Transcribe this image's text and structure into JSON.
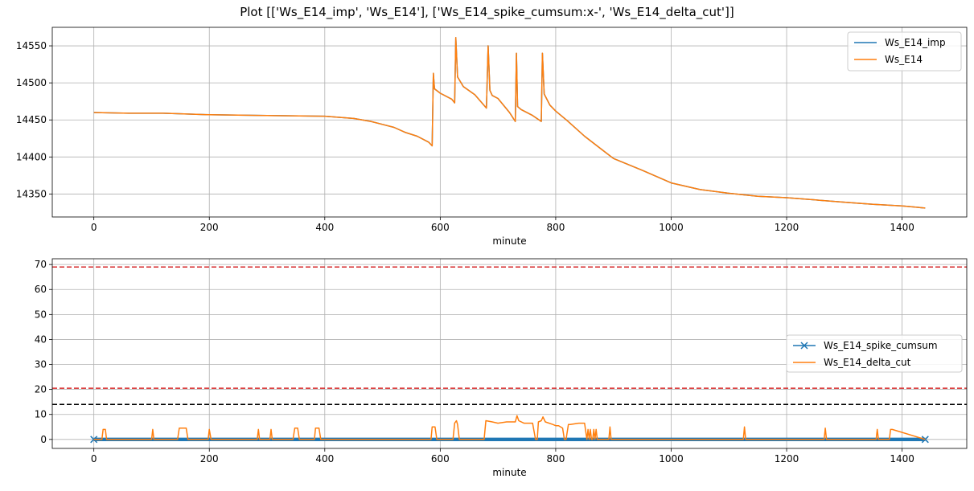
{
  "figure": {
    "suptitle": "Plot [['Ws_E14_imp', 'Ws_E14'], ['Ws_E14_spike_cumsum:x-', 'Ws_E14_delta_cut']]",
    "colors": {
      "blue": "#1f77b4",
      "orange": "#ff7f0e",
      "red": "#d62728",
      "black": "#000000",
      "grid": "#b0b0b0"
    }
  },
  "chart_data": [
    {
      "type": "line",
      "title": "",
      "xlabel": "minute",
      "ylabel": "",
      "xlim": [
        -72,
        1512
      ],
      "ylim": [
        14319,
        14575
      ],
      "xticks": [
        0,
        200,
        400,
        600,
        800,
        1000,
        1200,
        1400
      ],
      "yticks": [
        14350,
        14400,
        14450,
        14500,
        14550
      ],
      "grid": true,
      "legend": {
        "placement": "upper right",
        "entries": [
          "Ws_E14_imp",
          "Ws_E14"
        ]
      },
      "series": [
        {
          "name": "Ws_E14_imp",
          "color": "#1f77b4",
          "x": [
            0,
            60,
            120,
            200,
            300,
            400,
            450,
            480,
            500,
            520,
            540,
            560,
            580,
            586,
            588,
            590,
            600,
            620,
            625,
            627,
            630,
            640,
            660,
            680,
            683,
            686,
            690,
            700,
            720,
            730,
            732,
            734,
            740,
            760,
            775,
            777,
            780,
            790,
            800,
            820,
            850,
            880,
            900,
            950,
            1000,
            1050,
            1100,
            1150,
            1200,
            1250,
            1300,
            1350,
            1400,
            1440
          ],
          "values": [
            14460,
            14459,
            14459,
            14457,
            14456,
            14455,
            14452,
            14448,
            14444,
            14440,
            14433,
            14428,
            14420,
            14415,
            14513,
            14492,
            14486,
            14478,
            14473,
            14561,
            14508,
            14495,
            14484,
            14466,
            14550,
            14490,
            14483,
            14479,
            14460,
            14448,
            14540,
            14468,
            14464,
            14456,
            14448,
            14540,
            14485,
            14470,
            14462,
            14449,
            14428,
            14410,
            14398,
            14382,
            14365,
            14356,
            14351,
            14347,
            14345,
            14342,
            14339,
            14336,
            14334,
            14331
          ]
        },
        {
          "name": "Ws_E14",
          "color": "#ff7f0e",
          "x": [
            0,
            60,
            120,
            200,
            300,
            400,
            450,
            480,
            500,
            520,
            540,
            560,
            580,
            586,
            588,
            590,
            600,
            620,
            625,
            627,
            630,
            640,
            660,
            680,
            683,
            686,
            690,
            700,
            720,
            730,
            732,
            734,
            740,
            760,
            775,
            777,
            780,
            790,
            800,
            820,
            850,
            880,
            900,
            950,
            1000,
            1050,
            1100,
            1150,
            1200,
            1250,
            1300,
            1350,
            1400,
            1440
          ],
          "values": [
            14460,
            14459,
            14459,
            14457,
            14456,
            14455,
            14452,
            14448,
            14444,
            14440,
            14433,
            14428,
            14420,
            14415,
            14513,
            14492,
            14486,
            14478,
            14473,
            14561,
            14508,
            14495,
            14484,
            14466,
            14550,
            14490,
            14483,
            14479,
            14460,
            14448,
            14540,
            14468,
            14464,
            14456,
            14448,
            14540,
            14485,
            14470,
            14462,
            14449,
            14428,
            14410,
            14398,
            14382,
            14365,
            14356,
            14351,
            14347,
            14345,
            14342,
            14339,
            14336,
            14334,
            14331
          ]
        }
      ]
    },
    {
      "type": "line",
      "title": "",
      "xlabel": "minute",
      "ylabel": "",
      "xlim": [
        -72,
        1512
      ],
      "ylim": [
        -3.6,
        72.3
      ],
      "xticks": [
        0,
        200,
        400,
        600,
        800,
        1000,
        1200,
        1400
      ],
      "yticks": [
        0,
        10,
        20,
        30,
        40,
        50,
        60,
        70
      ],
      "grid": true,
      "legend": {
        "placement": "center right",
        "entries": [
          "Ws_E14_spike_cumsum",
          "Ws_E14_delta_cut"
        ]
      },
      "hlines": [
        {
          "y": 69,
          "color": "#d62728",
          "style": "dashed"
        },
        {
          "y": 20.5,
          "color": "#d62728",
          "style": "dashed"
        },
        {
          "y": 14,
          "color": "#000000",
          "style": "dashed"
        }
      ],
      "series": [
        {
          "name": "Ws_E14_spike_cumsum",
          "color": "#1f77b4",
          "marker": "x",
          "x": [
            0,
            1440
          ],
          "values": [
            0,
            0
          ],
          "band_low": -0.7,
          "band_high": 0.7
        },
        {
          "name": "Ws_E14_delta_cut",
          "color": "#ff7f0e",
          "x": [
            0,
            14,
            16,
            20,
            22,
            100,
            102,
            104,
            145,
            148,
            155,
            160,
            163,
            198,
            200,
            203,
            283,
            285,
            287,
            305,
            307,
            309,
            345,
            348,
            353,
            356,
            382,
            384,
            390,
            393,
            584,
            586,
            591,
            594,
            622,
            625,
            628,
            630,
            633,
            676,
            679,
            690,
            700,
            715,
            730,
            733,
            736,
            745,
            760,
            765,
            768,
            770,
            775,
            778,
            782,
            795,
            800,
            805,
            812,
            815,
            818,
            822,
            825,
            840,
            850,
            854,
            856,
            858,
            860,
            862,
            864,
            866,
            868,
            870,
            872,
            874,
            892,
            894,
            896,
            1125,
            1127,
            1129,
            1265,
            1267,
            1269,
            1355,
            1357,
            1359,
            1378,
            1380,
            1383,
            1440
          ],
          "values": [
            0,
            0,
            4,
            4,
            0,
            0,
            4,
            0,
            0,
            4.5,
            4.5,
            4.5,
            0,
            0,
            4,
            0,
            0,
            4,
            0,
            0,
            4,
            0,
            0,
            4.5,
            4.5,
            0,
            0,
            4.5,
            4.5,
            0,
            0,
            5,
            5,
            0,
            0,
            6.5,
            7.5,
            6,
            0,
            0,
            7.5,
            7,
            6.5,
            7,
            7,
            9.5,
            7.5,
            6.5,
            6.5,
            0,
            0,
            7,
            7.5,
            9,
            7,
            6,
            5.5,
            5.5,
            4.5,
            0,
            0,
            6,
            6,
            6.5,
            6.5,
            0,
            4,
            0,
            4,
            0,
            0,
            4,
            0,
            4,
            0,
            0,
            0,
            5,
            0,
            0,
            5,
            0,
            0,
            4.5,
            0,
            0,
            4,
            0,
            0,
            4,
            4,
            0
          ]
        }
      ]
    }
  ]
}
